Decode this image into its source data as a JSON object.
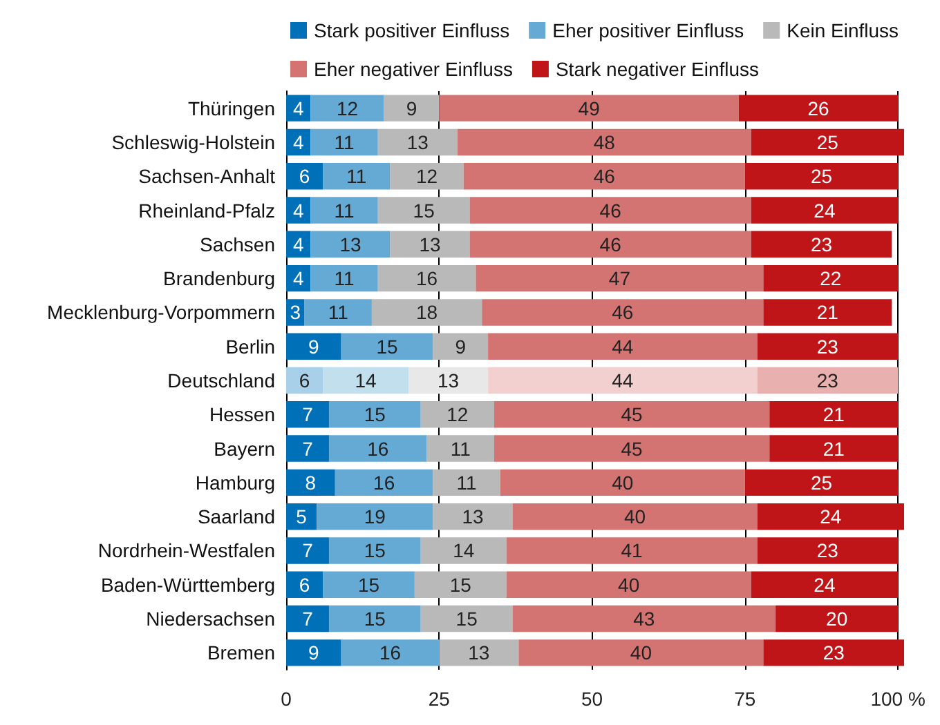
{
  "chart_data": {
    "type": "bar",
    "orientation": "horizontal",
    "stacked": true,
    "data_labels": true,
    "grid": "x",
    "legend": "top",
    "categories": [
      "Thüringen",
      "Schleswig-Holstein",
      "Sachsen-Anhalt",
      "Rheinland-Pfalz",
      "Sachsen",
      "Brandenburg",
      "Mecklenburg-Vorpommern",
      "Berlin",
      "Deutschland",
      "Hessen",
      "Bayern",
      "Hamburg",
      "Saarland",
      "Nordrhein-Westfalen",
      "Baden-Württemberg",
      "Niedersachsen",
      "Bremen"
    ],
    "xlim": [
      0,
      101
    ],
    "xticks": [
      0,
      25,
      50,
      75,
      {
        "value": 100,
        "label": "100 %"
      }
    ],
    "series": [
      {
        "name": "Stark positiver Einfluss",
        "color": "#0070b8",
        "colors": [
          "#0070b8",
          "#0070b8",
          "#0070b8",
          "#0070b8",
          "#0070b8",
          "#0070b8",
          "#0070b8",
          "#0070b8",
          "#a9d0e9",
          "#0070b8",
          "#0070b8",
          "#0070b8",
          "#0070b8",
          "#0070b8",
          "#0070b8",
          "#0070b8",
          "#0070b8"
        ],
        "values": [
          4,
          4,
          6,
          4,
          4,
          4,
          3,
          9,
          6,
          7,
          7,
          8,
          5,
          7,
          6,
          7,
          9
        ]
      },
      {
        "name": "Eher positiver Einfluss",
        "color": "#65a9d5",
        "colors": [
          "#65a9d5",
          "#65a9d5",
          "#65a9d5",
          "#65a9d5",
          "#65a9d5",
          "#65a9d5",
          "#65a9d5",
          "#65a9d5",
          "#c2dfee",
          "#65a9d5",
          "#65a9d5",
          "#65a9d5",
          "#65a9d5",
          "#65a9d5",
          "#65a9d5",
          "#65a9d5",
          "#65a9d5"
        ],
        "values": [
          12,
          11,
          11,
          11,
          13,
          11,
          11,
          15,
          14,
          15,
          16,
          16,
          19,
          15,
          15,
          15,
          16
        ]
      },
      {
        "name": "Kein Einfluss",
        "color": "#b9b9b9",
        "colors": [
          "#b9b9b9",
          "#b9b9b9",
          "#b9b9b9",
          "#b9b9b9",
          "#b9b9b9",
          "#b9b9b9",
          "#b9b9b9",
          "#b9b9b9",
          "#e8e8e8",
          "#b9b9b9",
          "#b9b9b9",
          "#b9b9b9",
          "#b9b9b9",
          "#b9b9b9",
          "#b9b9b9",
          "#b9b9b9",
          "#b9b9b9"
        ],
        "values": [
          9,
          13,
          12,
          15,
          13,
          16,
          18,
          9,
          13,
          12,
          11,
          11,
          13,
          14,
          15,
          15,
          13
        ]
      },
      {
        "name": "Eher negativer Einfluss",
        "color": "#d47472",
        "colors": [
          "#d47472",
          "#d47472",
          "#d47472",
          "#d47472",
          "#d47472",
          "#d47472",
          "#d47472",
          "#d47472",
          "#f2d0cf",
          "#d47472",
          "#d47472",
          "#d47472",
          "#d47472",
          "#d47472",
          "#d47472",
          "#d47472",
          "#d47472"
        ],
        "values": [
          49,
          48,
          46,
          46,
          46,
          47,
          46,
          44,
          44,
          45,
          45,
          40,
          40,
          41,
          40,
          43,
          40
        ]
      },
      {
        "name": "Stark negativer Einfluss",
        "color": "#c01518",
        "colors": [
          "#c01518",
          "#c01518",
          "#c01518",
          "#c01518",
          "#c01518",
          "#c01518",
          "#c01518",
          "#c01518",
          "#e8b0af",
          "#c01518",
          "#c01518",
          "#c01518",
          "#c01518",
          "#c01518",
          "#c01518",
          "#c01518",
          "#c01518"
        ],
        "values": [
          26,
          25,
          25,
          24,
          23,
          22,
          21,
          23,
          23,
          21,
          21,
          25,
          24,
          23,
          24,
          20,
          23
        ]
      }
    ]
  }
}
